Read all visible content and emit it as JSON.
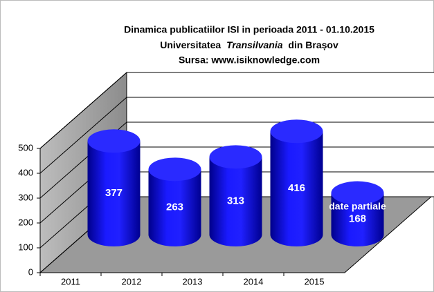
{
  "chart_data": {
    "type": "bar3d",
    "title": "Dinamica publicatiilor ISI in perioada 2011 - 01.10.2015",
    "subtitle_parts": [
      "Universitatea",
      "Transilvania",
      "din Brașov"
    ],
    "source": "Sursa: www.isiknowledge.com",
    "categories": [
      "2011",
      "2012",
      "2013",
      "2014",
      "2015"
    ],
    "values": [
      377,
      263,
      313,
      416,
      168
    ],
    "annotation": "date partiale",
    "color": "#1414f0",
    "ylim": [
      0,
      500
    ],
    "yticks": [
      0,
      100,
      200,
      300,
      400,
      500
    ],
    "grid": true
  }
}
